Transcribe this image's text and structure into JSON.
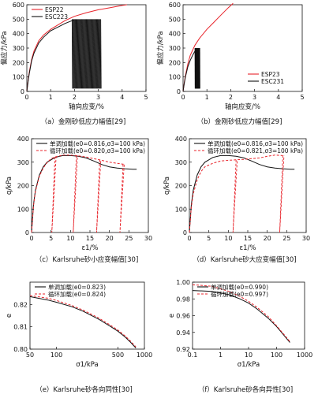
{
  "chart_data": [
    {
      "type": "line",
      "xlabel": "轴向应变/%",
      "ylabel": "偏应力/kPa",
      "xlim": [
        0,
        5
      ],
      "ylim": [
        0,
        600
      ],
      "xticks": [
        "0",
        "1",
        "2",
        "3",
        "4",
        "5"
      ],
      "yticks": [
        "0",
        "100",
        "200",
        "300",
        "400",
        "500",
        "600"
      ],
      "legend": [
        "ESP22",
        "ESC223"
      ],
      "caption": "（a）金刚砂低应力幅值[29]",
      "series": [
        {
          "name": "ESP22",
          "color": "#e8232a",
          "style": "solid",
          "x": [
            0,
            0.05,
            0.1,
            0.2,
            0.3,
            0.5,
            0.7,
            1.0,
            1.3,
            1.6,
            2.0,
            2.5,
            3.0,
            3.5,
            4.0,
            4.2
          ],
          "y": [
            0,
            70,
            130,
            220,
            280,
            350,
            390,
            430,
            460,
            490,
            520,
            545,
            565,
            580,
            595,
            600
          ]
        },
        {
          "name": "ESC223",
          "color": "#111111",
          "style": "solid",
          "x": [
            0,
            0.05,
            0.1,
            0.2,
            0.3,
            0.5,
            0.7,
            1.0,
            1.3,
            1.6,
            1.9,
            2.0
          ],
          "y": [
            0,
            65,
            120,
            210,
            265,
            335,
            375,
            420,
            445,
            470,
            490,
            495
          ],
          "cycles": {
            "x_start": 1.9,
            "x_end": 3.1,
            "y_min": 20,
            "y_max": 500,
            "count": 40
          }
        }
      ]
    },
    {
      "type": "line",
      "xlabel": "轴向应变/%",
      "ylabel": "偏应力/kPa",
      "xlim": [
        0,
        5
      ],
      "ylim": [
        0,
        600
      ],
      "xticks": [
        "0",
        "1",
        "2",
        "3",
        "4",
        "5"
      ],
      "yticks": [
        "0",
        "100",
        "200",
        "300",
        "400",
        "500",
        "600"
      ],
      "legend": [
        "ESP23",
        "ESC231"
      ],
      "caption": "（b）金刚砂低应力幅值[29]",
      "series": [
        {
          "name": "ESP23",
          "color": "#e8232a",
          "style": "solid",
          "x": [
            0,
            0.05,
            0.1,
            0.2,
            0.3,
            0.5,
            0.7,
            1.0,
            1.3,
            1.6,
            1.9,
            2.1
          ],
          "y": [
            0,
            60,
            110,
            190,
            250,
            320,
            370,
            430,
            480,
            530,
            580,
            610
          ]
        },
        {
          "name": "ESC231",
          "color": "#111111",
          "style": "solid",
          "x": [
            0,
            0.05,
            0.1,
            0.2,
            0.3,
            0.4,
            0.5
          ],
          "y": [
            0,
            55,
            100,
            170,
            215,
            250,
            280
          ],
          "cycles": {
            "x_start": 0.5,
            "x_end": 0.7,
            "y_min": 20,
            "y_max": 300,
            "count": 18
          }
        }
      ]
    },
    {
      "type": "line",
      "xlabel": "ε1/%",
      "ylabel": "q/kPa",
      "xlim": [
        0,
        30
      ],
      "ylim": [
        0,
        400
      ],
      "xticks": [
        "0",
        "5",
        "10",
        "15",
        "20",
        "25",
        "30"
      ],
      "yticks": [
        "0",
        "100",
        "200",
        "300",
        "400"
      ],
      "legend": [
        "单调加载(e0=0.816,σ3=100 kPa)",
        "循环加载(e0=0.820,σ3=100 kPa)"
      ],
      "caption": "（c）Karlsruhe砂小应变幅值[30]",
      "series": [
        {
          "name": "单调加载(e0=0.816,σ3=100 kPa)",
          "color": "#111111",
          "style": "solid",
          "x": [
            0,
            0.5,
            1,
            2,
            3,
            4,
            6,
            8,
            10,
            12,
            14,
            16,
            18,
            20,
            22,
            24,
            26,
            27
          ],
          "y": [
            0,
            120,
            180,
            245,
            280,
            300,
            320,
            328,
            328,
            325,
            318,
            305,
            290,
            280,
            275,
            272,
            270,
            270
          ]
        },
        {
          "name": "循环加载(e0=0.820,σ3=100 kPa)",
          "color": "#e8232a",
          "style": "dashed",
          "x": [
            0,
            0.5,
            1,
            2,
            3,
            4,
            5,
            6,
            8,
            10,
            12,
            14,
            16,
            18,
            20,
            22,
            24
          ],
          "y": [
            0,
            115,
            175,
            240,
            275,
            298,
            315,
            322,
            330,
            330,
            327,
            322,
            315,
            308,
            300,
            295,
            290
          ],
          "unload_at": [
            6,
            11.5,
            17.5,
            23.5
          ]
        }
      ]
    },
    {
      "type": "line",
      "xlabel": "ε1/%",
      "ylabel": "q/kPa",
      "xlim": [
        0,
        30
      ],
      "ylim": [
        0,
        400
      ],
      "xticks": [
        "0",
        "5",
        "10",
        "15",
        "20",
        "25",
        "30"
      ],
      "yticks": [
        "0",
        "100",
        "200",
        "300",
        "400"
      ],
      "legend": [
        "单调加载(e0=0.816,σ3=100 kPa)",
        "循环加载(e0=0.821,σ3=100 kPa)"
      ],
      "caption": "（d）Karlsruhe砂大应变幅值[30]",
      "series": [
        {
          "name": "单调加载(e0=0.816,σ3=100 kPa)",
          "color": "#111111",
          "style": "solid",
          "x": [
            0,
            0.5,
            1,
            2,
            3,
            4,
            6,
            8,
            10,
            12,
            14,
            16,
            18,
            20,
            22,
            24,
            26,
            27
          ],
          "y": [
            0,
            120,
            180,
            245,
            280,
            300,
            320,
            328,
            328,
            325,
            318,
            305,
            290,
            280,
            275,
            272,
            270,
            270
          ]
        },
        {
          "name": "循环加载(e0=0.821,σ3=100 kPa)",
          "color": "#e8232a",
          "style": "dashed",
          "x": [
            0,
            0.5,
            1,
            2,
            3,
            4,
            6,
            8,
            10,
            12,
            14,
            16,
            18,
            20,
            22,
            24
          ],
          "y": [
            0,
            110,
            165,
            225,
            260,
            280,
            295,
            305,
            308,
            310,
            312,
            315,
            318,
            325,
            330,
            328
          ],
          "unload_at": [
            12,
            24
          ]
        }
      ]
    },
    {
      "type": "line",
      "xlabel": "σ1/kPa",
      "ylabel": "e",
      "xscale": "log",
      "xlim": [
        50,
        1000
      ],
      "ylim": [
        0.8,
        0.83
      ],
      "xticks": [
        "50",
        "100",
        "500",
        "1000"
      ],
      "yticks": [
        "0.80",
        "0.81",
        "0.82"
      ],
      "legend": [
        "单调加载(e0=0.823)",
        "循环加载(e0=0.824)"
      ],
      "caption": "（e）Karlsruhe砂各向同性[30]",
      "series": [
        {
          "name": "单调加载(e0=0.823)",
          "color": "#111111",
          "style": "solid",
          "x": [
            50,
            80,
            100,
            150,
            200,
            300,
            400,
            500,
            600,
            700,
            800
          ],
          "y": [
            0.8235,
            0.822,
            0.821,
            0.819,
            0.817,
            0.8135,
            0.8105,
            0.808,
            0.8055,
            0.803,
            0.8005
          ]
        },
        {
          "name": "循环加载(e0=0.824)",
          "color": "#e8232a",
          "style": "dashed",
          "x": [
            50,
            80,
            100,
            150,
            200,
            300,
            400,
            500,
            600,
            700,
            800
          ],
          "y": [
            0.824,
            0.8228,
            0.8218,
            0.8195,
            0.8175,
            0.814,
            0.811,
            0.8085,
            0.806,
            0.8035,
            0.801
          ]
        }
      ]
    },
    {
      "type": "line",
      "xlabel": "σ1/kPa",
      "ylabel": "e",
      "xscale": "log",
      "xlim": [
        0.1,
        1000
      ],
      "ylim": [
        0.92,
        1.0
      ],
      "xticks": [
        "0.1",
        "1",
        "10",
        "100",
        "1000"
      ],
      "yticks": [
        "0.92",
        "0.94",
        "0.96",
        "0.98",
        "1.00"
      ],
      "legend": [
        "单调加载(e0=0.990)",
        "循环加载(e0=0.997)"
      ],
      "caption": "（f）Karlsruhe砂各向异性[30]",
      "series": [
        {
          "name": "单调加载(e0=0.990)",
          "color": "#111111",
          "style": "solid",
          "x": [
            0.1,
            0.5,
            1,
            2,
            5,
            10,
            20,
            50,
            100,
            200,
            300
          ],
          "y": [
            0.99,
            0.989,
            0.987,
            0.985,
            0.98,
            0.975,
            0.968,
            0.957,
            0.947,
            0.935,
            0.928
          ]
        },
        {
          "name": "循环加载(e0=0.997)",
          "color": "#e8232a",
          "style": "dashed",
          "x": [
            0.1,
            0.5,
            1,
            2,
            5,
            10,
            20,
            50,
            100,
            200,
            300
          ],
          "y": [
            0.997,
            0.995,
            0.992,
            0.989,
            0.983,
            0.977,
            0.97,
            0.959,
            0.948,
            0.936,
            0.929
          ]
        }
      ]
    }
  ]
}
